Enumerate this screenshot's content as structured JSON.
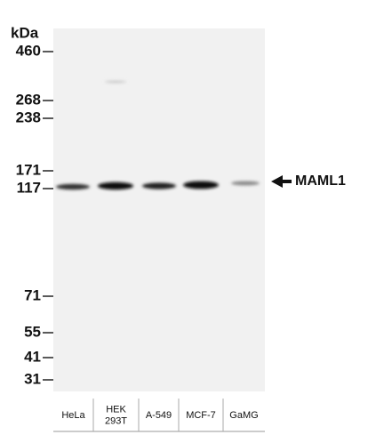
{
  "markers": {
    "unit": "kDa",
    "labels": [
      "460",
      "268",
      "238",
      "171",
      "117",
      "71",
      "55",
      "41",
      "31"
    ]
  },
  "lanes": [
    [
      "HeLa"
    ],
    [
      "HEK",
      "293T"
    ],
    [
      "A-549"
    ],
    [
      "MCF-7"
    ],
    [
      "GaMG"
    ]
  ],
  "target": "MAML1"
}
